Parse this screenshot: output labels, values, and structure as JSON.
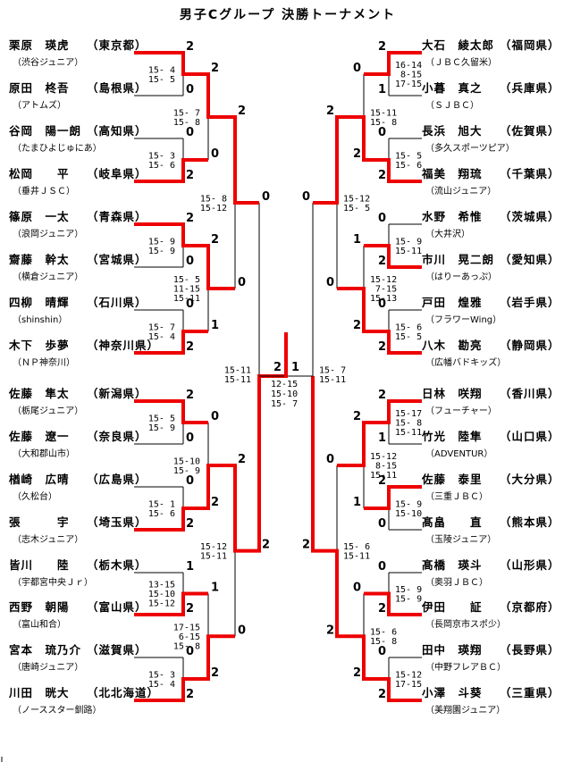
{
  "title": "男子Cグループ 決勝トーナメント",
  "colors": {
    "winner_path": "#ee0000",
    "line": "#000000",
    "background": "#ffffff"
  },
  "final": {
    "counts": [
      "2",
      "1"
    ],
    "games": [
      "12-15",
      "15-10",
      "15- 7"
    ]
  },
  "sides": [
    {
      "side": "left",
      "players": [
        {
          "name": "栗原　瑛虎",
          "pref": "東京都",
          "club": "渋谷ジュニア"
        },
        {
          "name": "原田　柊吾",
          "pref": "島根県",
          "club": "アトムズ"
        },
        {
          "name": "谷岡　陽一朗",
          "pref": "高知県",
          "club": "たまひよじゅにあ"
        },
        {
          "name": "松岡　　平",
          "pref": "岐阜県",
          "club": "垂井ＪＳＣ"
        },
        {
          "name": "篠原　一太",
          "pref": "青森県",
          "club": "浪岡ジュニア"
        },
        {
          "name": "齋藤　幹太",
          "pref": "宮城県",
          "club": "横倉ジュニア"
        },
        {
          "name": "四柳　晴輝",
          "pref": "石川県",
          "club": "shinshin"
        },
        {
          "name": "木下　歩夢",
          "pref": "神奈川県",
          "club": "ＮＰ神奈川"
        },
        {
          "name": "佐藤　隼太",
          "pref": "新潟県",
          "club": "栃尾ジュニア"
        },
        {
          "name": "佐藤　遼一",
          "pref": "奈良県",
          "club": "大和郡山市"
        },
        {
          "name": "楢崎　広晴",
          "pref": "広島県",
          "club": "久松台"
        },
        {
          "name": "張　　　宇",
          "pref": "埼玉県",
          "club": "志木ジュニア"
        },
        {
          "name": "皆川　　陸",
          "pref": "栃木県",
          "club": "宇都宮中央Ｊｒ"
        },
        {
          "name": "西野　朝陽",
          "pref": "富山県",
          "club": "富山和合"
        },
        {
          "name": "宮本　琉乃介",
          "pref": "滋賀県",
          "club": "唐崎ジュニア"
        },
        {
          "name": "川田　晄大",
          "pref": "北北海道",
          "club": "ノーススター釧路"
        }
      ],
      "r1": [
        {
          "games": [
            "15- 4",
            "15- 5"
          ],
          "counts": [
            "2",
            "0"
          ]
        },
        {
          "games": [
            "15- 3",
            "15- 6"
          ],
          "counts": [
            "0",
            "2"
          ]
        },
        {
          "games": [
            "15- 9",
            "15- 9"
          ],
          "counts": [
            "2",
            "0"
          ]
        },
        {
          "games": [
            "15- 7",
            "15- 4"
          ],
          "counts": [
            "0",
            "2"
          ]
        },
        {
          "games": [
            "15- 5",
            "15- 9"
          ],
          "counts": [
            "2",
            "0"
          ]
        },
        {
          "games": [
            "15- 1",
            "15- 6"
          ],
          "counts": [
            "0",
            "2"
          ]
        },
        {
          "games": [
            "13-15",
            "15-10",
            "15-12"
          ],
          "counts": [
            "1",
            "2"
          ]
        },
        {
          "games": [
            "15- 3",
            "15- 4"
          ],
          "counts": [
            "0",
            "2"
          ]
        }
      ],
      "r2": [
        {
          "games": [
            "15- 7",
            "15- 8"
          ],
          "counts": [
            "2",
            "0"
          ]
        },
        {
          "games": [
            "15- 5",
            "11-15",
            "15-11"
          ],
          "counts": [
            "2",
            "1"
          ]
        },
        {
          "games": [
            "15-10",
            "15- 9"
          ],
          "counts": [
            "0",
            "2"
          ]
        },
        {
          "games": [
            "17-15",
            " 6-15",
            "15- 8"
          ],
          "counts": [
            "1",
            "2"
          ]
        }
      ],
      "qf": [
        {
          "games": [
            "15- 8",
            "15-12"
          ],
          "counts": [
            "2",
            "0"
          ]
        },
        {
          "games": [
            "15-12",
            "15-11"
          ],
          "counts": [
            "2",
            "0"
          ]
        }
      ],
      "sf": {
        "games": [
          "15-11",
          "15-11"
        ],
        "counts": [
          "0",
          "2"
        ]
      }
    },
    {
      "side": "right",
      "players": [
        {
          "name": "大石　綾太郎",
          "pref": "福岡県",
          "club": "ＪＢＣ久留米"
        },
        {
          "name": "小暮　真之",
          "pref": "兵庫県",
          "club": "ＳＪＢＣ"
        },
        {
          "name": "長浜　旭大",
          "pref": "佐賀県",
          "club": "多久スポーツピア"
        },
        {
          "name": "福美　翔琉",
          "pref": "千葉県",
          "club": "流山ジュニア"
        },
        {
          "name": "水野　希惟",
          "pref": "茨城県",
          "club": "大井沢"
        },
        {
          "name": "市川　晃二朗",
          "pref": "愛知県",
          "club": "はりーあっぷ"
        },
        {
          "name": "戸田　煌雅",
          "pref": "岩手県",
          "club": "フラワーWing"
        },
        {
          "name": "八木　勘亮",
          "pref": "静岡県",
          "club": "広幡バドキッズ"
        },
        {
          "name": "日林　咲翔",
          "pref": "香川県",
          "club": "フューチャー"
        },
        {
          "name": "竹光　陸隼",
          "pref": "山口県",
          "club": "ADVENTUR"
        },
        {
          "name": "佐藤　泰里",
          "pref": "大分県",
          "club": "三重ＪＢＣ"
        },
        {
          "name": "髙畠　　直",
          "pref": "熊本県",
          "club": "玉陵ジュニア"
        },
        {
          "name": "髙橋　瑛斗",
          "pref": "山形県",
          "club": "奥羽ＪＢＣ"
        },
        {
          "name": "伊田　　証",
          "pref": "京都府",
          "club": "長岡京市スポ少"
        },
        {
          "name": "田中　瑛翔",
          "pref": "長野県",
          "club": "中野フレアＢＣ"
        },
        {
          "name": "小澤　斗葵",
          "pref": "三重県",
          "club": "美翔園ジュニア"
        }
      ],
      "r1": [
        {
          "games": [
            "16-14",
            " 8-15",
            "17-15"
          ],
          "counts": [
            "2",
            "1"
          ]
        },
        {
          "games": [
            "15- 5",
            "15- 6"
          ],
          "counts": [
            "0",
            "2"
          ]
        },
        {
          "games": [
            "15- 9",
            "15-11"
          ],
          "counts": [
            "0",
            "2"
          ]
        },
        {
          "games": [
            "15- 6",
            "15- 5"
          ],
          "counts": [
            "0",
            "2"
          ]
        },
        {
          "games": [
            "15-17",
            "15- 8",
            "15-11"
          ],
          "counts": [
            "2",
            "1"
          ]
        },
        {
          "games": [
            "15- 9",
            "15-10"
          ],
          "counts": [
            "2",
            "0"
          ]
        },
        {
          "games": [
            "15- 9",
            "15- 9"
          ],
          "counts": [
            "0",
            "2"
          ]
        },
        {
          "games": [
            "15-12",
            "17-15"
          ],
          "counts": [
            "0",
            "2"
          ]
        }
      ],
      "r2": [
        {
          "games": [
            "15-11",
            "15- 8"
          ],
          "counts": [
            "0",
            "2"
          ]
        },
        {
          "games": [
            "15-12",
            " 7-15",
            "15-13"
          ],
          "counts": [
            "1",
            "2"
          ]
        },
        {
          "games": [
            "15-12",
            " 8-15",
            "15-11"
          ],
          "counts": [
            "2",
            "1"
          ]
        },
        {
          "games": [
            "15- 6",
            "15- 8"
          ],
          "counts": [
            "0",
            "2"
          ]
        }
      ],
      "qf": [
        {
          "games": [
            "15-12",
            "15- 5"
          ],
          "counts": [
            "2",
            "0"
          ]
        },
        {
          "games": [
            "15- 6",
            "15-11"
          ],
          "counts": [
            "0",
            "2"
          ]
        }
      ],
      "sf": {
        "games": [
          "15- 7",
          "15-11"
        ],
        "counts": [
          "0",
          "2"
        ]
      }
    }
  ]
}
